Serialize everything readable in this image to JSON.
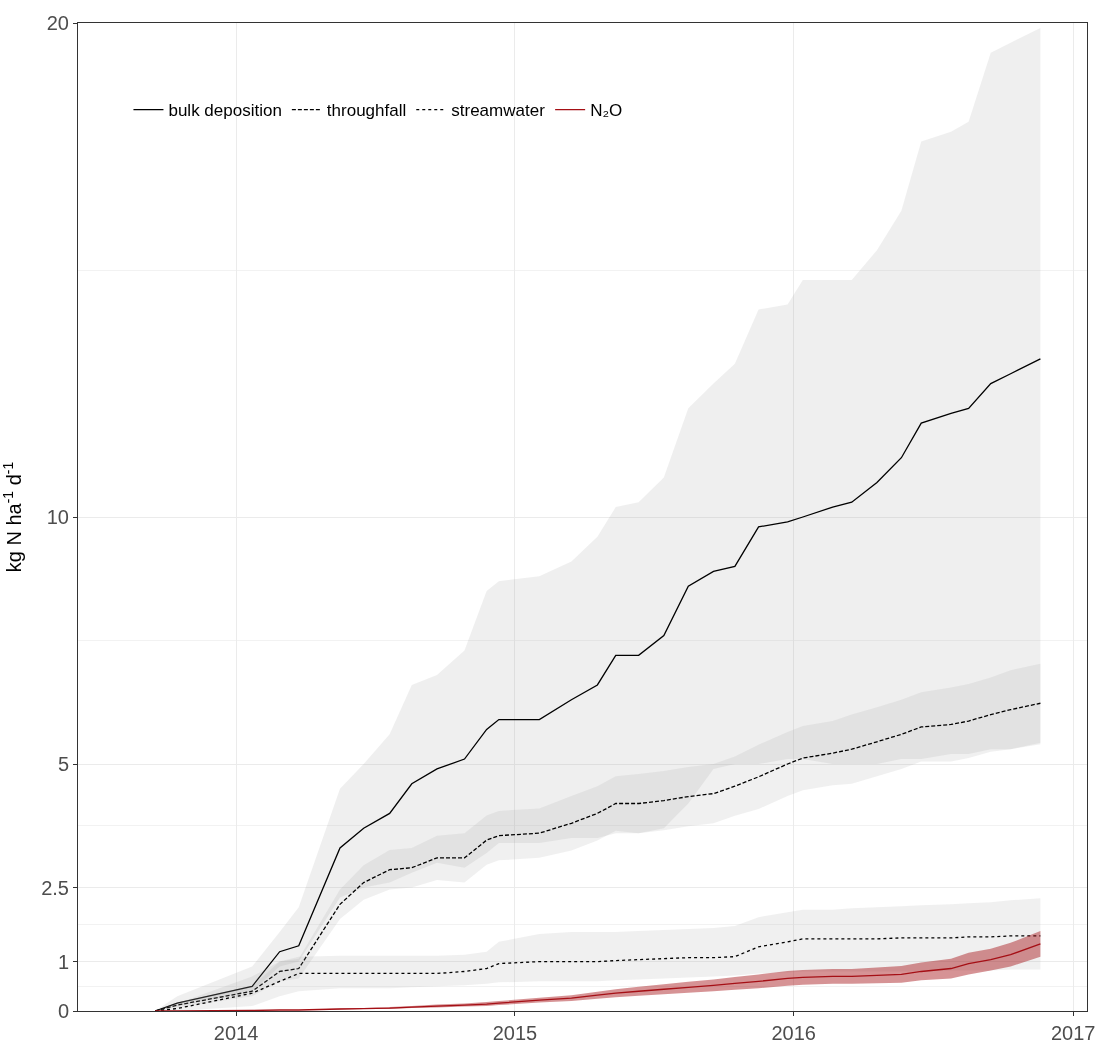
{
  "chart_data": {
    "type": "line",
    "ylabel": "kg N ha$^{-1}$ d$^{-1}$",
    "x": [
      "2013-09-17",
      "2013-10-16",
      "2014-01-22",
      "2014-02-27",
      "2014-03-24",
      "2014-05-17",
      "2014-06-17",
      "2014-07-21",
      "2014-08-19",
      "2014-09-21",
      "2014-10-27",
      "2014-11-25",
      "2014-12-11",
      "2015-02-02",
      "2015-03-16",
      "2015-04-19",
      "2015-05-13",
      "2015-06-12",
      "2015-07-15",
      "2015-08-16",
      "2015-09-18",
      "2015-10-16",
      "2015-11-16",
      "2015-12-24",
      "2016-01-13",
      "2016-02-21",
      "2016-03-17",
      "2016-04-19",
      "2016-05-21",
      "2016-06-16",
      "2016-07-25",
      "2016-08-17",
      "2016-09-15",
      "2016-10-11",
      "2016-11-19"
    ],
    "series": [
      {
        "name": "bulk deposition",
        "color": "#000000",
        "line_style": "solid",
        "values": [
          0,
          0.16,
          0.5,
          1.2,
          1.32,
          3.3,
          3.7,
          4.0,
          4.6,
          4.9,
          5.1,
          5.7,
          5.9,
          5.9,
          6.3,
          6.6,
          7.2,
          7.2,
          7.6,
          8.6,
          8.9,
          9.0,
          9.8,
          9.9,
          10.0,
          10.2,
          10.3,
          10.7,
          11.2,
          11.9,
          12.1,
          12.2,
          12.7,
          12.9,
          13.2
        ],
        "upper": [
          0,
          0.3,
          0.9,
          1.6,
          2.1,
          4.5,
          5.0,
          5.6,
          6.6,
          6.8,
          7.3,
          8.5,
          8.7,
          8.8,
          9.1,
          9.6,
          10.2,
          10.3,
          10.8,
          12.2,
          12.7,
          13.1,
          14.2,
          14.3,
          14.8,
          14.8,
          14.8,
          15.4,
          16.2,
          17.6,
          17.8,
          18.0,
          19.4,
          19.6,
          19.9
        ],
        "lower": [
          0,
          0.1,
          0.4,
          0.9,
          1.0,
          2.3,
          2.5,
          2.6,
          2.8,
          3.0,
          2.9,
          3.2,
          3.4,
          3.4,
          3.5,
          3.5,
          3.6,
          3.6,
          3.7,
          4.2,
          4.9,
          5.0,
          5.0,
          5.1,
          5.1,
          5.0,
          5.0,
          5.0,
          5.1,
          5.1,
          5.2,
          5.2,
          5.3,
          5.3,
          5.4
        ]
      },
      {
        "name": "throughfall",
        "color": "#000000",
        "line_style": "dashed",
        "values": [
          0,
          0.12,
          0.4,
          0.8,
          0.86,
          2.16,
          2.6,
          2.86,
          2.9,
          3.1,
          3.1,
          3.46,
          3.55,
          3.6,
          3.8,
          4.0,
          4.2,
          4.2,
          4.26,
          4.34,
          4.4,
          4.55,
          4.74,
          5.0,
          5.12,
          5.22,
          5.3,
          5.45,
          5.6,
          5.75,
          5.8,
          5.87,
          6.0,
          6.1,
          6.23
        ],
        "upper": [
          0,
          0.17,
          0.5,
          1.0,
          1.06,
          2.46,
          2.95,
          3.26,
          3.3,
          3.55,
          3.6,
          3.96,
          4.05,
          4.1,
          4.35,
          4.55,
          4.75,
          4.8,
          4.86,
          4.94,
          5.0,
          5.15,
          5.39,
          5.65,
          5.77,
          5.87,
          6.0,
          6.15,
          6.3,
          6.45,
          6.55,
          6.62,
          6.75,
          6.9,
          7.03
        ],
        "lower": [
          0,
          0.07,
          0.3,
          0.6,
          0.66,
          1.86,
          2.25,
          2.46,
          2.5,
          2.65,
          2.6,
          2.96,
          3.05,
          3.1,
          3.25,
          3.45,
          3.65,
          3.6,
          3.66,
          3.74,
          3.8,
          3.95,
          4.09,
          4.35,
          4.47,
          4.57,
          4.6,
          4.75,
          4.9,
          5.05,
          5.05,
          5.12,
          5.25,
          5.3,
          5.43
        ]
      },
      {
        "name": "streamwater",
        "color": "#000000",
        "line_style": "dotted",
        "values": [
          0,
          0.05,
          0.36,
          0.6,
          0.76,
          0.76,
          0.76,
          0.76,
          0.76,
          0.76,
          0.8,
          0.86,
          0.96,
          1.0,
          1.0,
          1.0,
          1.02,
          1.04,
          1.06,
          1.08,
          1.08,
          1.1,
          1.3,
          1.4,
          1.46,
          1.46,
          1.46,
          1.46,
          1.48,
          1.48,
          1.48,
          1.5,
          1.5,
          1.52,
          1.52
        ],
        "upper": [
          0,
          0.15,
          0.7,
          1.0,
          1.1,
          1.12,
          1.12,
          1.12,
          1.12,
          1.12,
          1.14,
          1.2,
          1.4,
          1.56,
          1.6,
          1.6,
          1.6,
          1.62,
          1.64,
          1.66,
          1.68,
          1.72,
          1.9,
          2.0,
          2.05,
          2.05,
          2.08,
          2.1,
          2.12,
          2.14,
          2.16,
          2.18,
          2.2,
          2.24,
          2.28
        ],
        "lower": [
          0,
          0,
          0.1,
          0.3,
          0.4,
          0.46,
          0.46,
          0.46,
          0.48,
          0.5,
          0.52,
          0.55,
          0.58,
          0.6,
          0.6,
          0.6,
          0.62,
          0.64,
          0.66,
          0.68,
          0.7,
          0.72,
          0.76,
          0.78,
          0.8,
          0.8,
          0.8,
          0.8,
          0.8,
          0.8,
          0.82,
          0.82,
          0.82,
          0.84,
          0.84
        ]
      },
      {
        "name": "N₂O",
        "color": "#a50f15",
        "line_style": "solid",
        "values": [
          0,
          0,
          0.01,
          0.02,
          0.02,
          0.04,
          0.05,
          0.06,
          0.08,
          0.1,
          0.12,
          0.14,
          0.16,
          0.22,
          0.26,
          0.32,
          0.36,
          0.4,
          0.44,
          0.48,
          0.52,
          0.56,
          0.6,
          0.66,
          0.68,
          0.7,
          0.7,
          0.72,
          0.74,
          0.8,
          0.86,
          0.96,
          1.04,
          1.14,
          1.36
        ],
        "upper": [
          0,
          0,
          0.01,
          0.02,
          0.02,
          0.05,
          0.06,
          0.08,
          0.1,
          0.13,
          0.15,
          0.18,
          0.2,
          0.27,
          0.32,
          0.39,
          0.44,
          0.49,
          0.54,
          0.59,
          0.64,
          0.69,
          0.74,
          0.81,
          0.83,
          0.85,
          0.85,
          0.88,
          0.91,
          0.98,
          1.06,
          1.18,
          1.26,
          1.38,
          1.62
        ],
        "lower": [
          0,
          0,
          0.01,
          0.02,
          0.02,
          0.03,
          0.04,
          0.04,
          0.06,
          0.07,
          0.09,
          0.1,
          0.12,
          0.17,
          0.2,
          0.25,
          0.28,
          0.31,
          0.34,
          0.37,
          0.4,
          0.43,
          0.46,
          0.51,
          0.53,
          0.55,
          0.55,
          0.56,
          0.57,
          0.62,
          0.66,
          0.74,
          0.82,
          0.9,
          1.1
        ]
      }
    ],
    "xlim": [
      "2013-06-08",
      "2017-01-19"
    ],
    "xticks": [
      "2014",
      "2015",
      "2016",
      "2017"
    ],
    "ylim": [
      0,
      20
    ],
    "yticks": [
      0,
      1,
      2.5,
      5,
      10,
      20
    ],
    "grid": true,
    "legend": "top left"
  }
}
